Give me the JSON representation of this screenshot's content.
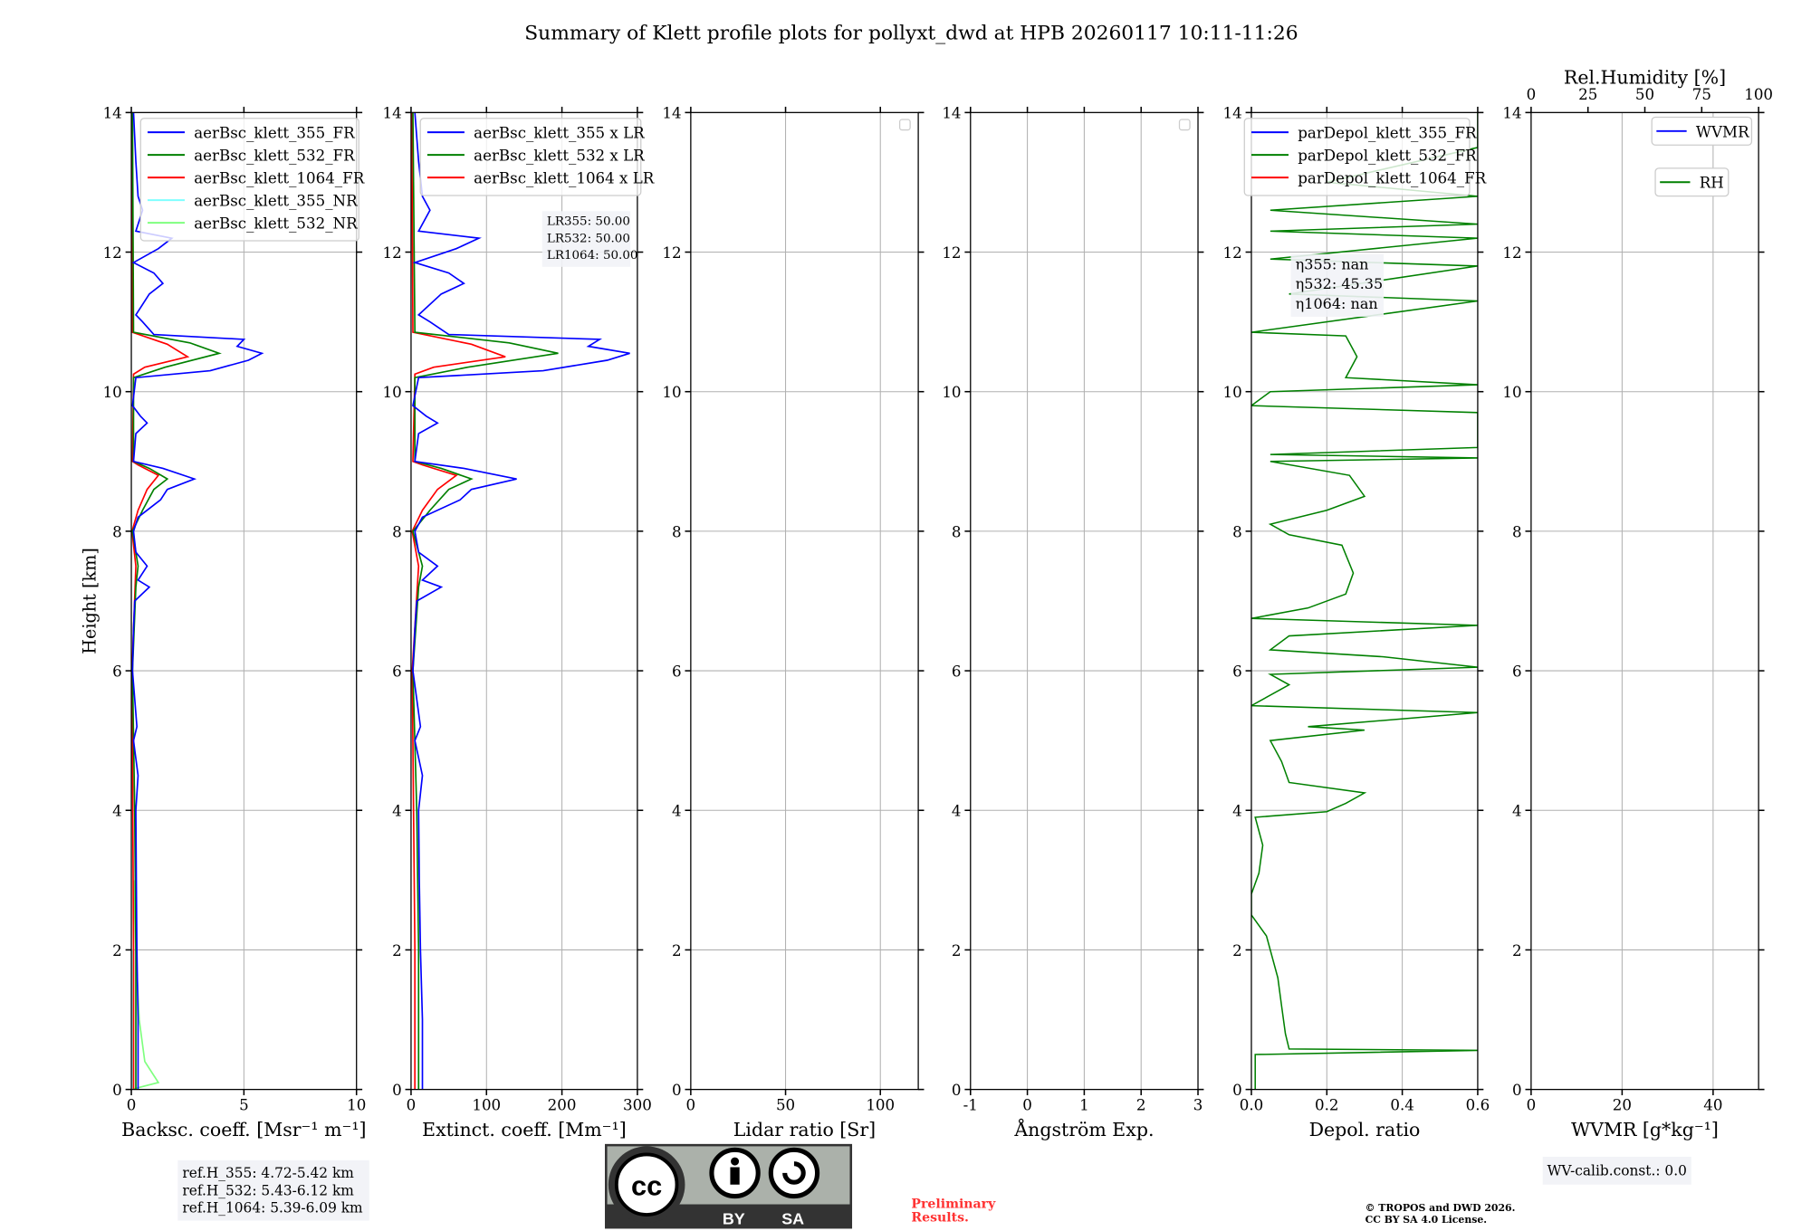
{
  "chart_data": {
    "type": "line",
    "title": "Summary of Klett profile plots for pollyxt_dwd at HPB 20260117 10:11-11:26",
    "ylabel": "Height [km]",
    "ylim": [
      0,
      14
    ],
    "yticks": [
      0,
      2,
      4,
      6,
      8,
      10,
      12,
      14
    ],
    "grid": true,
    "panels": [
      {
        "id": "backscatter",
        "xlabel": "Backsc. coeff. [Msr⁻¹ m⁻¹]",
        "xlim": [
          0,
          10
        ],
        "xticks": [
          0,
          5,
          10
        ],
        "legend": [
          "aerBsc_klett_355_FR",
          "aerBsc_klett_532_FR",
          "aerBsc_klett_1064_FR",
          "aerBsc_klett_355_NR",
          "aerBsc_klett_532_NR"
        ],
        "legend_colors": [
          "#0000ff",
          "#008000",
          "#ff0000",
          "#7fffff",
          "#7fff7f"
        ]
      },
      {
        "id": "extinction",
        "xlabel": "Extinct. coeff. [Mm⁻¹]",
        "xlim": [
          0,
          300
        ],
        "xticks": [
          0,
          100,
          200,
          300
        ],
        "legend": [
          "aerBsc_klett_355 x LR",
          "aerBsc_klett_532 x LR",
          "aerBsc_klett_1064 x LR"
        ],
        "legend_colors": [
          "#0000ff",
          "#008000",
          "#ff0000"
        ],
        "annotation": [
          "LR355: 50.00",
          "LR532: 50.00",
          "LR1064: 50.00"
        ]
      },
      {
        "id": "lidar-ratio",
        "xlabel": "Lidar ratio [Sr]",
        "xlim": [
          0,
          120
        ],
        "xticks": [
          0,
          50,
          100
        ],
        "legend": [],
        "legend_colors": []
      },
      {
        "id": "angstrom",
        "xlabel": "Ångström Exp.",
        "xlim": [
          -1,
          3
        ],
        "xticks": [
          -1,
          0,
          1,
          2,
          3
        ],
        "legend": [],
        "legend_colors": []
      },
      {
        "id": "depol",
        "xlabel": "Depol. ratio",
        "xlim": [
          0,
          0.6
        ],
        "xticks": [
          0.0,
          0.2,
          0.4,
          0.6
        ],
        "xtick_labels": [
          "0.0",
          "0.2",
          "0.4",
          "0.6"
        ],
        "legend": [
          "parDepol_klett_355_FR",
          "parDepol_klett_532_FR",
          "parDepol_klett_1064_FR"
        ],
        "legend_colors": [
          "#0000ff",
          "#008000",
          "#ff0000"
        ],
        "annotation": [
          "η355: nan",
          "η532: 45.35",
          "η1064: nan"
        ]
      },
      {
        "id": "wvmr",
        "xlabel": "WVMR [g*kg⁻¹]",
        "xlim": [
          0,
          50
        ],
        "xticks": [
          0,
          20,
          40
        ],
        "top_xlabel": "Rel.Humidity [%]",
        "top_xlim": [
          0,
          100
        ],
        "top_xticks": [
          0,
          25,
          50,
          75,
          100
        ],
        "legend": [
          "WVMR",
          "RH"
        ],
        "legend_colors": [
          "#0000ff",
          "#008000"
        ]
      }
    ],
    "lidar_ratio": 50,
    "series": {
      "bsc355FR": {
        "color": "#0000ff",
        "points": [
          [
            0,
            0.3
          ],
          [
            1,
            0.3
          ],
          [
            2,
            0.25
          ],
          [
            3,
            0.22
          ],
          [
            4,
            0.2
          ],
          [
            4.5,
            0.3
          ],
          [
            5,
            0.1
          ],
          [
            5.2,
            0.25
          ],
          [
            6,
            0.05
          ],
          [
            6.6,
            0.1
          ],
          [
            7,
            0.15
          ],
          [
            7.2,
            0.8
          ],
          [
            7.3,
            0.3
          ],
          [
            7.5,
            0.7
          ],
          [
            7.7,
            0.2
          ],
          [
            8,
            0.1
          ],
          [
            8.2,
            0.3
          ],
          [
            8.45,
            1.3
          ],
          [
            8.6,
            1.6
          ],
          [
            8.75,
            2.8
          ],
          [
            8.9,
            1.4
          ],
          [
            9.0,
            0.1
          ],
          [
            9.4,
            0.2
          ],
          [
            9.55,
            0.7
          ],
          [
            9.65,
            0.4
          ],
          [
            9.8,
            0.05
          ],
          [
            10.2,
            0.2
          ],
          [
            10.3,
            3.5
          ],
          [
            10.45,
            5.2
          ],
          [
            10.55,
            5.8
          ],
          [
            10.65,
            4.7
          ],
          [
            10.75,
            5.0
          ],
          [
            10.82,
            1.0
          ],
          [
            11.0,
            0.5
          ],
          [
            11.1,
            0.2
          ],
          [
            11.4,
            0.8
          ],
          [
            11.55,
            1.4
          ],
          [
            11.7,
            1.0
          ],
          [
            11.85,
            0.1
          ],
          [
            12.05,
            1.2
          ],
          [
            12.2,
            1.8
          ],
          [
            12.3,
            0.2
          ],
          [
            12.6,
            0.5
          ],
          [
            12.8,
            0.3
          ],
          [
            13.3,
            0.2
          ],
          [
            14,
            0.1
          ]
        ]
      },
      "bsc532FR": {
        "color": "#008000",
        "points": [
          [
            0,
            0.2
          ],
          [
            2,
            0.2
          ],
          [
            4,
            0.15
          ],
          [
            6,
            0.05
          ],
          [
            7.2,
            0.2
          ],
          [
            7.5,
            0.3
          ],
          [
            8,
            0.05
          ],
          [
            8.3,
            0.5
          ],
          [
            8.6,
            1.0
          ],
          [
            8.75,
            1.6
          ],
          [
            8.9,
            0.8
          ],
          [
            9.0,
            0.1
          ],
          [
            10.2,
            0.1
          ],
          [
            10.35,
            1.5
          ],
          [
            10.55,
            3.9
          ],
          [
            10.7,
            2.6
          ],
          [
            10.85,
            0.1
          ],
          [
            14,
            0.05
          ]
        ]
      },
      "bsc1064FR": {
        "color": "#ff0000",
        "points": [
          [
            0,
            0.1
          ],
          [
            2,
            0.1
          ],
          [
            6,
            0.03
          ],
          [
            7.5,
            0.2
          ],
          [
            8,
            0.03
          ],
          [
            8.3,
            0.3
          ],
          [
            8.6,
            0.7
          ],
          [
            8.8,
            1.2
          ],
          [
            8.95,
            0.3
          ],
          [
            9.0,
            0.05
          ],
          [
            10.25,
            0.1
          ],
          [
            10.35,
            0.6
          ],
          [
            10.5,
            2.5
          ],
          [
            10.68,
            1.6
          ],
          [
            10.85,
            0.05
          ],
          [
            14,
            0.02
          ]
        ]
      },
      "bsc355NR": {
        "color": "#7fffff",
        "points": [
          [
            0,
            0.05
          ],
          [
            1,
            0.05
          ],
          [
            2,
            0.03
          ]
        ]
      },
      "bsc532NR": {
        "color": "#7fff7f",
        "points": [
          [
            0,
            0.0
          ],
          [
            0.1,
            1.2
          ],
          [
            0.2,
            1.0
          ],
          [
            0.4,
            0.6
          ],
          [
            1,
            0.35
          ],
          [
            2,
            0.2
          ],
          [
            3,
            0.1
          ]
        ]
      },
      "depol532": {
        "color": "#008000",
        "points": [
          [
            0,
            0.01
          ],
          [
            0.5,
            0.01
          ],
          [
            0.56,
            0.6
          ],
          [
            0.58,
            0.1
          ],
          [
            0.8,
            0.09
          ],
          [
            1.2,
            0.08
          ],
          [
            1.6,
            0.07
          ],
          [
            2.2,
            0.04
          ],
          [
            2.5,
            0.0
          ],
          [
            2.8,
            0.0
          ],
          [
            3.1,
            0.02
          ],
          [
            3.5,
            0.03
          ],
          [
            3.9,
            0.01
          ],
          [
            3.98,
            0.2
          ],
          [
            4.1,
            0.25
          ],
          [
            4.25,
            0.3
          ],
          [
            4.4,
            0.1
          ],
          [
            4.7,
            0.08
          ],
          [
            5.0,
            0.05
          ],
          [
            5.15,
            0.3
          ],
          [
            5.2,
            0.15
          ],
          [
            5.4,
            0.6
          ],
          [
            5.5,
            0.0
          ],
          [
            5.8,
            0.1
          ],
          [
            5.95,
            0.05
          ],
          [
            6.05,
            0.6
          ],
          [
            6.2,
            0.35
          ],
          [
            6.3,
            0.05
          ],
          [
            6.5,
            0.1
          ],
          [
            6.65,
            0.6
          ],
          [
            6.75,
            0.0
          ],
          [
            6.9,
            0.15
          ],
          [
            7.1,
            0.25
          ],
          [
            7.4,
            0.27
          ],
          [
            7.8,
            0.24
          ],
          [
            7.95,
            0.1
          ],
          [
            8.1,
            0.05
          ],
          [
            8.3,
            0.2
          ],
          [
            8.5,
            0.3
          ],
          [
            8.8,
            0.26
          ],
          [
            9.0,
            0.05
          ],
          [
            9.05,
            0.6
          ],
          [
            9.1,
            0.05
          ],
          [
            9.2,
            0.6
          ],
          [
            9.7,
            0.6
          ],
          [
            9.8,
            0.0
          ],
          [
            10.0,
            0.05
          ],
          [
            10.1,
            0.6
          ],
          [
            10.2,
            0.25
          ],
          [
            10.5,
            0.28
          ],
          [
            10.8,
            0.25
          ],
          [
            10.85,
            0.0
          ],
          [
            11.3,
            0.6
          ],
          [
            11.4,
            0.1
          ],
          [
            11.8,
            0.6
          ],
          [
            11.9,
            0.05
          ],
          [
            12.2,
            0.6
          ],
          [
            12.3,
            0.05
          ],
          [
            12.4,
            0.6
          ],
          [
            12.6,
            0.05
          ],
          [
            12.8,
            0.6
          ],
          [
            13.0,
            0.2
          ],
          [
            13.5,
            0.6
          ],
          [
            14,
            0.6
          ]
        ]
      }
    }
  },
  "footer": {
    "ref_heights": [
      "ref.H_355: 4.72-5.42 km",
      "ref.H_532: 5.43-6.12 km",
      "ref.H_1064: 5.39-6.09 km"
    ],
    "license_logo": {
      "text": "CC BY SA"
    },
    "preliminary": [
      "Preliminary",
      "Results."
    ],
    "copyright": [
      "© TROPOS and DWD 2026.",
      "CC BY SA 4.0 License."
    ],
    "wv_calib": "WV-calib.const.: 0.0"
  }
}
